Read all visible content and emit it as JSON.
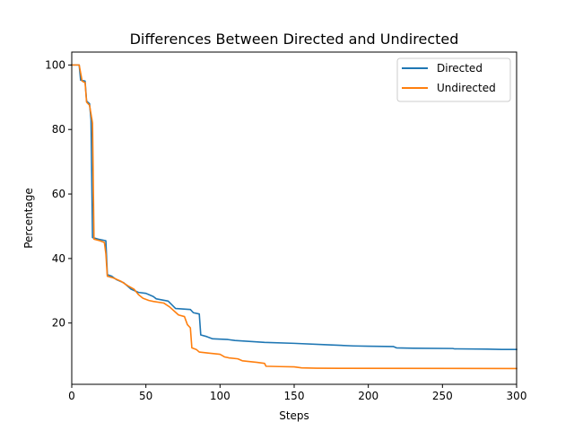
{
  "chart_data": {
    "type": "line",
    "title": "Differences Between Directed and Undirected",
    "xlabel": "Steps",
    "ylabel": "Percentage",
    "xlim": [
      0,
      300
    ],
    "ylim": [
      1,
      104
    ],
    "x_ticks": [
      0,
      50,
      100,
      150,
      200,
      250,
      300
    ],
    "y_ticks": [
      20,
      40,
      60,
      80,
      100
    ],
    "grid": false,
    "legend_position": "upper right",
    "series": [
      {
        "name": "Directed",
        "color": "#1f77b4",
        "points": [
          [
            0,
            100
          ],
          [
            5,
            100
          ],
          [
            6,
            95.3
          ],
          [
            9,
            95
          ],
          [
            10,
            88.8
          ],
          [
            12,
            88
          ],
          [
            13,
            83
          ],
          [
            14,
            46.5
          ],
          [
            18,
            46
          ],
          [
            23,
            45.5
          ],
          [
            24,
            35
          ],
          [
            27,
            34.5
          ],
          [
            30,
            33.5
          ],
          [
            35,
            32.5
          ],
          [
            38,
            31.3
          ],
          [
            40,
            30.5
          ],
          [
            45,
            29.5
          ],
          [
            50,
            29.2
          ],
          [
            55,
            28.2
          ],
          [
            57,
            27.5
          ],
          [
            65,
            26.8
          ],
          [
            70,
            24.5
          ],
          [
            80,
            24.2
          ],
          [
            82,
            23.2
          ],
          [
            86,
            22.8
          ],
          [
            87,
            16.3
          ],
          [
            91,
            15.8
          ],
          [
            95,
            15.1
          ],
          [
            105,
            14.9
          ],
          [
            110,
            14.6
          ],
          [
            130,
            14
          ],
          [
            150,
            13.7
          ],
          [
            170,
            13.3
          ],
          [
            190,
            12.9
          ],
          [
            200,
            12.8
          ],
          [
            217,
            12.7
          ],
          [
            219,
            12.3
          ],
          [
            230,
            12.2
          ],
          [
            257,
            12.1
          ],
          [
            258,
            12
          ],
          [
            280,
            11.9
          ],
          [
            290,
            11.8
          ],
          [
            300,
            11.8
          ]
        ]
      },
      {
        "name": "Undirected",
        "color": "#ff7f0e",
        "points": [
          [
            0,
            100
          ],
          [
            5,
            100
          ],
          [
            7,
            95
          ],
          [
            9,
            94.5
          ],
          [
            10,
            88.5
          ],
          [
            12,
            87.5
          ],
          [
            14,
            82
          ],
          [
            15,
            46
          ],
          [
            19,
            45.5
          ],
          [
            22,
            45
          ],
          [
            23,
            41.5
          ],
          [
            24,
            34.5
          ],
          [
            28,
            34
          ],
          [
            33,
            33
          ],
          [
            38,
            31.5
          ],
          [
            42,
            30.5
          ],
          [
            45,
            28.8
          ],
          [
            48,
            27.7
          ],
          [
            52,
            27
          ],
          [
            55,
            26.7
          ],
          [
            62,
            26.2
          ],
          [
            66,
            25
          ],
          [
            72,
            22.5
          ],
          [
            76,
            22
          ],
          [
            78,
            19.5
          ],
          [
            80,
            18.5
          ],
          [
            81,
            12.3
          ],
          [
            84,
            11.8
          ],
          [
            86,
            11
          ],
          [
            92,
            10.7
          ],
          [
            100,
            10.3
          ],
          [
            103,
            9.5
          ],
          [
            106,
            9.2
          ],
          [
            112,
            8.9
          ],
          [
            115,
            8.3
          ],
          [
            125,
            7.8
          ],
          [
            130,
            7.5
          ],
          [
            131,
            6.6
          ],
          [
            140,
            6.5
          ],
          [
            150,
            6.4
          ],
          [
            155,
            6.1
          ],
          [
            165,
            6
          ],
          [
            180,
            5.95
          ],
          [
            300,
            5.9
          ]
        ]
      }
    ]
  }
}
